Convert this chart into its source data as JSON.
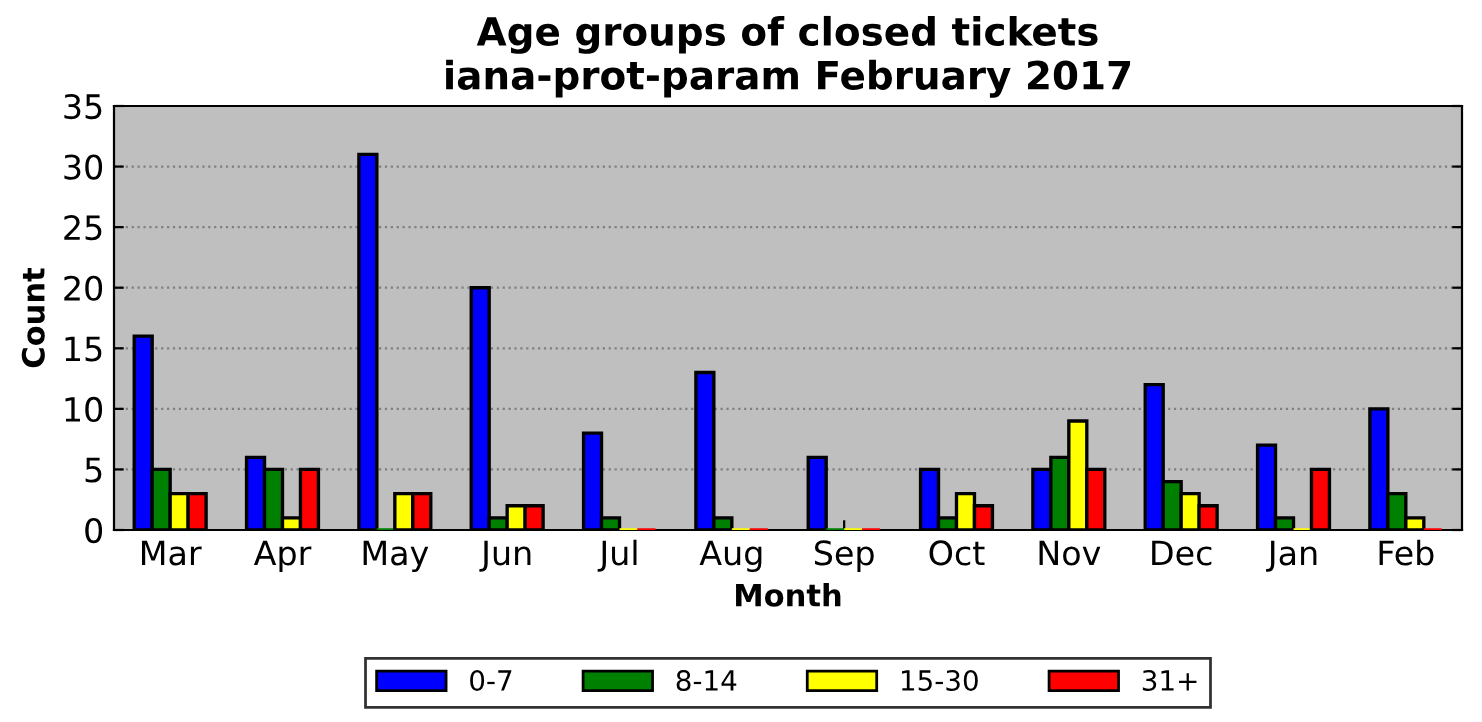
{
  "chart_data": {
    "type": "bar",
    "title": "Age groups of closed tickets\niana-prot-param February 2017",
    "xlabel": "Month",
    "ylabel": "Count",
    "categories": [
      "Mar",
      "Apr",
      "May",
      "Jun",
      "Jul",
      "Aug",
      "Sep",
      "Oct",
      "Nov",
      "Dec",
      "Jan",
      "Feb"
    ],
    "series": [
      {
        "name": "0-7",
        "color": "#0000ff",
        "values": [
          16,
          6,
          31,
          20,
          8,
          13,
          6,
          5,
          5,
          12,
          7,
          10
        ]
      },
      {
        "name": "8-14",
        "color": "#008000",
        "values": [
          5,
          5,
          0,
          1,
          1,
          1,
          0,
          1,
          6,
          4,
          1,
          3
        ]
      },
      {
        "name": "15-30",
        "color": "#ffff00",
        "values": [
          3,
          1,
          3,
          2,
          0,
          0,
          0,
          3,
          9,
          3,
          0,
          1
        ]
      },
      {
        "name": "31+",
        "color": "#ff0000",
        "values": [
          3,
          5,
          3,
          2,
          0,
          0,
          0,
          2,
          5,
          2,
          5,
          0
        ]
      }
    ],
    "ylim": [
      0,
      35
    ],
    "yticks": [
      0,
      5,
      10,
      15,
      20,
      25,
      30,
      35
    ],
    "grid": "y",
    "legend": "bottom"
  }
}
